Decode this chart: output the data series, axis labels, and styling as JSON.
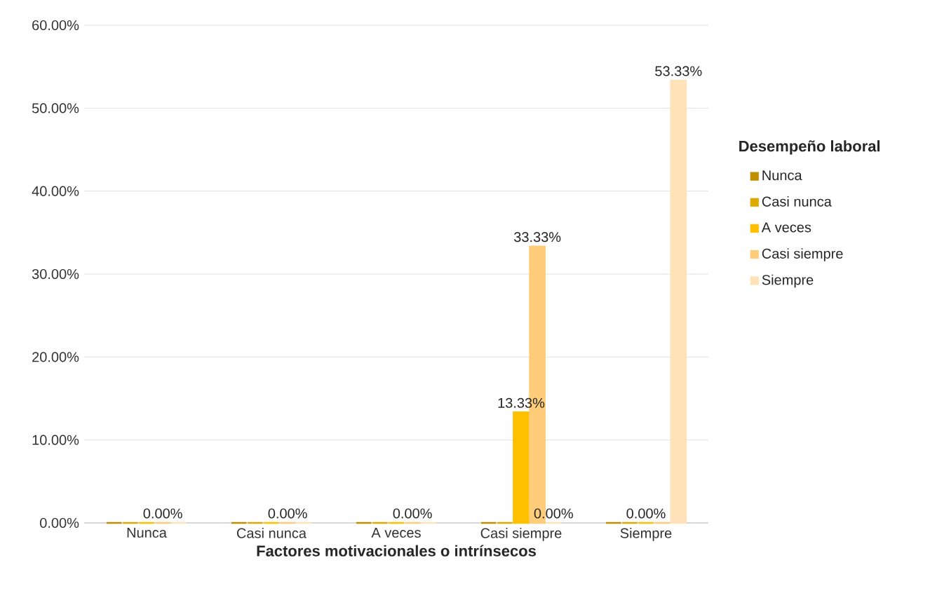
{
  "chart_data": {
    "type": "bar",
    "xlabel": "Factores motivacionales o intrínsecos",
    "legend_title": "Desempeño laboral",
    "categories": [
      "Nunca",
      "Casi nunca",
      "A veces",
      "Casi siempre",
      "Siempre"
    ],
    "series": [
      {
        "name": "Nunca",
        "color": "#bf8f00",
        "values": [
          0,
          0,
          0,
          0,
          0
        ]
      },
      {
        "name": "Casi nunca",
        "color": "#dea900",
        "values": [
          0,
          0,
          0,
          0,
          0
        ]
      },
      {
        "name": "A veces",
        "color": "#ffc000",
        "values": [
          0,
          0,
          0,
          13.33,
          0
        ],
        "value_labels": [
          null,
          null,
          null,
          "13.33%",
          "0.00%"
        ]
      },
      {
        "name": "Casi siempre",
        "color": "#ffcc7a",
        "values": [
          0,
          0,
          0,
          33.33,
          0
        ],
        "value_labels": [
          "0.00%",
          "0.00%",
          "0.00%",
          "33.33%",
          null
        ]
      },
      {
        "name": "Siempre",
        "color": "#ffe2b8",
        "values": [
          0,
          0,
          0,
          0,
          53.33
        ],
        "value_labels": [
          null,
          null,
          null,
          "0.00%",
          "53.33%"
        ]
      }
    ],
    "ylim": [
      0,
      60
    ],
    "yticks": [
      {
        "value": 0,
        "label": "0.00%"
      },
      {
        "value": 10,
        "label": "10.00%"
      },
      {
        "value": 20,
        "label": "20.00%"
      },
      {
        "value": 30,
        "label": "30.00%"
      },
      {
        "value": 40,
        "label": "40.00%"
      },
      {
        "value": 50,
        "label": "50.00%"
      },
      {
        "value": 60,
        "label": "60.00%"
      }
    ],
    "grid": "y",
    "legend": "right"
  }
}
